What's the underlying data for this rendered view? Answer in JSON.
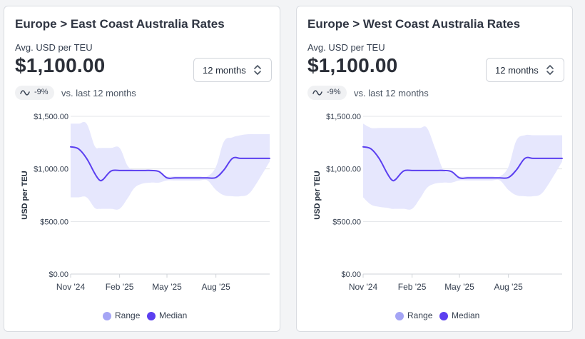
{
  "cards": [
    {
      "title": "Europe > East Coast Australia Rates",
      "subtitle": "Avg. USD per TEU",
      "value": "$1,100.00",
      "period_select": "12 months",
      "change_badge": "-9%",
      "change_note": "vs. last 12 months"
    },
    {
      "title": "Europe > West Coast Australia Rates",
      "subtitle": "Avg. USD per TEU",
      "value": "$1,100.00",
      "period_select": "12 months",
      "change_badge": "-9%",
      "change_note": "vs. last 12 months"
    }
  ],
  "colors": {
    "range": "#e6e7fd",
    "median": "#5b3ff0",
    "range_legend": "#a5a5f5"
  },
  "chart_data": [
    {
      "type": "area",
      "ylabel": "USD per TEU",
      "ylim": [
        0,
        1500
      ],
      "yticks": [
        0,
        500,
        1000,
        1500
      ],
      "ytick_labels": [
        "$0.00",
        "$500.00",
        "$1,000.00",
        "$1,500.00"
      ],
      "xlim": [
        "2024-11-01",
        "2025-11-10"
      ],
      "xticks": [
        "2024-11-01",
        "2025-02-01",
        "2025-05-01",
        "2025-08-01"
      ],
      "xtick_labels": [
        "Nov '24",
        "Feb '25",
        "May '25",
        "Aug '25"
      ],
      "grid": true,
      "legend": [
        "Range",
        "Median"
      ],
      "legend_position": "bottom",
      "x": [
        "2024-11-01",
        "2024-11-16",
        "2024-12-01",
        "2024-12-16",
        "2024-12-25",
        "2025-01-01",
        "2025-01-16",
        "2025-02-01",
        "2025-02-16",
        "2025-03-01",
        "2025-03-16",
        "2025-04-01",
        "2025-04-16",
        "2025-05-01",
        "2025-05-16",
        "2025-06-01",
        "2025-06-16",
        "2025-07-01",
        "2025-07-16",
        "2025-08-01",
        "2025-08-16",
        "2025-09-01",
        "2025-09-16",
        "2025-10-01",
        "2025-10-16",
        "2025-11-10"
      ],
      "series": [
        {
          "name": "Range",
          "type": "band",
          "low": [
            730,
            730,
            730,
            630,
            620,
            620,
            620,
            620,
            720,
            820,
            860,
            870,
            870,
            890,
            890,
            890,
            890,
            890,
            890,
            800,
            750,
            740,
            740,
            760,
            860,
            1070
          ],
          "high": [
            1430,
            1430,
            1430,
            1220,
            1200,
            1200,
            1200,
            1200,
            1030,
            990,
            990,
            990,
            970,
            930,
            930,
            930,
            930,
            930,
            930,
            1020,
            1260,
            1300,
            1320,
            1330,
            1330,
            1330
          ]
        },
        {
          "name": "Median",
          "type": "line",
          "values": [
            1210,
            1190,
            1100,
            960,
            895,
            900,
            980,
            985,
            985,
            985,
            985,
            985,
            975,
            915,
            915,
            915,
            915,
            915,
            915,
            918,
            990,
            1100,
            1100,
            1100,
            1100,
            1100
          ]
        }
      ]
    },
    {
      "type": "area",
      "ylabel": "USD per TEU",
      "ylim": [
        0,
        1500
      ],
      "yticks": [
        0,
        500,
        1000,
        1500
      ],
      "ytick_labels": [
        "$0.00",
        "$500.00",
        "$1,000.00",
        "$1,500.00"
      ],
      "xlim": [
        "2024-11-01",
        "2025-11-10"
      ],
      "xticks": [
        "2024-11-01",
        "2025-02-01",
        "2025-05-01",
        "2025-08-01"
      ],
      "xtick_labels": [
        "Nov '24",
        "Feb '25",
        "May '25",
        "Aug '25"
      ],
      "grid": true,
      "legend": [
        "Range",
        "Median"
      ],
      "legend_position": "bottom",
      "x": [
        "2024-11-01",
        "2024-11-16",
        "2024-12-01",
        "2024-12-16",
        "2024-12-25",
        "2025-01-01",
        "2025-01-16",
        "2025-02-01",
        "2025-02-16",
        "2025-03-01",
        "2025-03-16",
        "2025-04-01",
        "2025-04-16",
        "2025-05-01",
        "2025-05-16",
        "2025-06-01",
        "2025-06-16",
        "2025-07-01",
        "2025-07-16",
        "2025-08-01",
        "2025-08-16",
        "2025-09-01",
        "2025-09-16",
        "2025-10-01",
        "2025-10-16",
        "2025-11-10"
      ],
      "series": [
        {
          "name": "Range",
          "type": "band",
          "low": [
            730,
            660,
            640,
            630,
            620,
            620,
            620,
            620,
            720,
            820,
            860,
            870,
            870,
            890,
            890,
            890,
            890,
            890,
            890,
            800,
            750,
            740,
            740,
            760,
            860,
            1070
          ],
          "high": [
            1430,
            1390,
            1390,
            1390,
            1390,
            1390,
            1390,
            1390,
            1390,
            1390,
            1200,
            990,
            970,
            930,
            930,
            930,
            930,
            930,
            930,
            1020,
            1270,
            1320,
            1320,
            1320,
            1320,
            1320
          ]
        },
        {
          "name": "Median",
          "type": "line",
          "values": [
            1210,
            1190,
            1100,
            960,
            895,
            900,
            980,
            985,
            985,
            985,
            985,
            985,
            975,
            915,
            915,
            915,
            915,
            915,
            915,
            918,
            990,
            1100,
            1100,
            1100,
            1100,
            1100
          ]
        }
      ]
    }
  ]
}
